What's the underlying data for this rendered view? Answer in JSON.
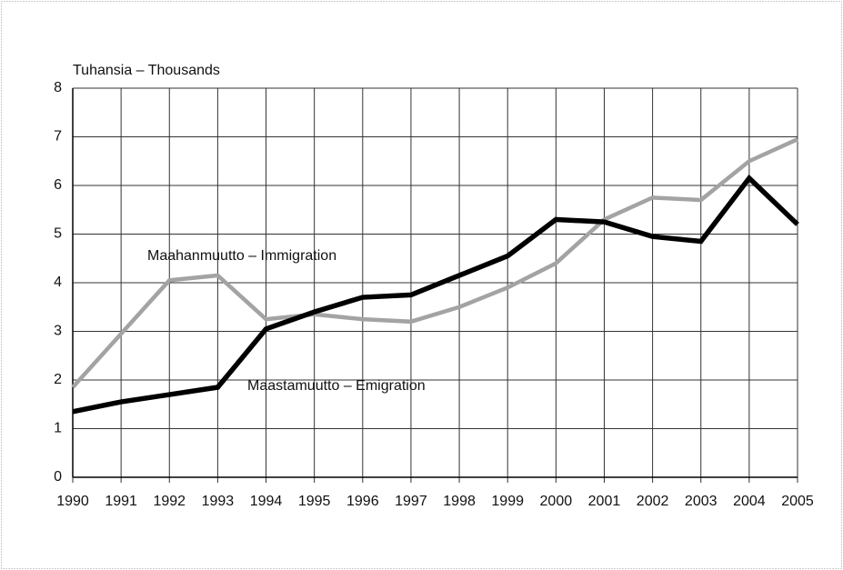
{
  "chart_data": {
    "type": "line",
    "ylabel": "Tuhansia – Thousands",
    "x": [
      1990,
      1991,
      1992,
      1993,
      1994,
      1995,
      1996,
      1997,
      1998,
      1999,
      2000,
      2001,
      2002,
      2003,
      2004,
      2005
    ],
    "xlim": [
      1990,
      2005
    ],
    "xticks": [
      1990,
      1991,
      1992,
      1993,
      1994,
      1995,
      1996,
      1997,
      1998,
      1999,
      2000,
      2001,
      2002,
      2003,
      2004,
      2005
    ],
    "ylim": [
      0,
      8
    ],
    "yticks": [
      0,
      1,
      2,
      3,
      4,
      5,
      6,
      7,
      8
    ],
    "grid": true,
    "series": [
      {
        "name": "Maahanmuutto – Immigration",
        "color": "#a3a3a3",
        "values": [
          1.85,
          2.95,
          4.05,
          4.15,
          3.25,
          3.35,
          3.25,
          3.2,
          3.5,
          3.9,
          4.4,
          5.3,
          5.75,
          5.7,
          6.5,
          6.95
        ]
      },
      {
        "name": "Maastamuutto – Emigration",
        "color": "#000000",
        "values": [
          1.35,
          1.55,
          1.7,
          1.85,
          3.05,
          3.4,
          3.7,
          3.75,
          4.15,
          4.55,
          5.3,
          5.25,
          4.95,
          4.85,
          6.15,
          5.2
        ]
      }
    ]
  }
}
